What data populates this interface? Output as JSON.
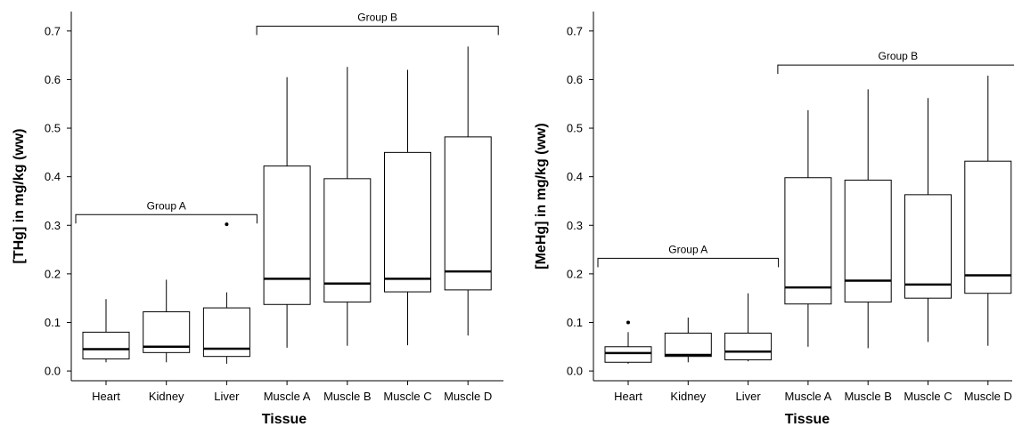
{
  "chart_data": [
    {
      "type": "boxplot",
      "xlabel": "Tissue",
      "ylabel": "[THg] in mg/kg (ww)",
      "ylim": [
        -0.02,
        0.74
      ],
      "yticks": [
        0.0,
        0.1,
        0.2,
        0.3,
        0.4,
        0.5,
        0.6,
        0.7
      ],
      "ytick_labels": [
        "0.0",
        "0.1",
        "0.2",
        "0.3",
        "0.4",
        "0.5",
        "0.6",
        "0.7"
      ],
      "categories": [
        "Heart",
        "Kidney",
        "Liver",
        "Muscle A",
        "Muscle B",
        "Muscle C",
        "Muscle D"
      ],
      "boxes": [
        {
          "whisker_low": 0.018,
          "q1": 0.025,
          "median": 0.045,
          "q3": 0.08,
          "whisker_high": 0.148,
          "outliers": []
        },
        {
          "whisker_low": 0.018,
          "q1": 0.038,
          "median": 0.05,
          "q3": 0.122,
          "whisker_high": 0.188,
          "outliers": []
        },
        {
          "whisker_low": 0.015,
          "q1": 0.03,
          "median": 0.046,
          "q3": 0.13,
          "whisker_high": 0.162,
          "outliers": [
            0.302
          ]
        },
        {
          "whisker_low": 0.048,
          "q1": 0.137,
          "median": 0.19,
          "q3": 0.422,
          "whisker_high": 0.605,
          "outliers": []
        },
        {
          "whisker_low": 0.052,
          "q1": 0.142,
          "median": 0.18,
          "q3": 0.396,
          "whisker_high": 0.626,
          "outliers": []
        },
        {
          "whisker_low": 0.053,
          "q1": 0.163,
          "median": 0.19,
          "q3": 0.45,
          "whisker_high": 0.62,
          "outliers": []
        },
        {
          "whisker_low": 0.073,
          "q1": 0.167,
          "median": 0.205,
          "q3": 0.482,
          "whisker_high": 0.668,
          "outliers": []
        }
      ],
      "annotations": [
        {
          "label": "Group A",
          "from": 0,
          "to": 2,
          "y": 0.322
        },
        {
          "label": "Group B",
          "from": 3,
          "to": 6,
          "y": 0.71
        }
      ]
    },
    {
      "type": "boxplot",
      "xlabel": "Tissue",
      "ylabel": "[MeHg] in mg/kg (ww)",
      "ylim": [
        -0.02,
        0.74
      ],
      "yticks": [
        0.0,
        0.1,
        0.2,
        0.3,
        0.4,
        0.5,
        0.6,
        0.7
      ],
      "ytick_labels": [
        "0.0",
        "0.1",
        "0.2",
        "0.3",
        "0.4",
        "0.5",
        "0.6",
        "0.7"
      ],
      "categories": [
        "Heart",
        "Kidney",
        "Liver",
        "Muscle A",
        "Muscle B",
        "Muscle C",
        "Muscle D"
      ],
      "boxes": [
        {
          "whisker_low": 0.015,
          "q1": 0.018,
          "median": 0.037,
          "q3": 0.05,
          "whisker_high": 0.08,
          "outliers": [
            0.1
          ]
        },
        {
          "whisker_low": 0.018,
          "q1": 0.03,
          "median": 0.033,
          "q3": 0.078,
          "whisker_high": 0.11,
          "outliers": []
        },
        {
          "whisker_low": 0.02,
          "q1": 0.023,
          "median": 0.04,
          "q3": 0.078,
          "whisker_high": 0.16,
          "outliers": []
        },
        {
          "whisker_low": 0.05,
          "q1": 0.138,
          "median": 0.172,
          "q3": 0.398,
          "whisker_high": 0.537,
          "outliers": []
        },
        {
          "whisker_low": 0.047,
          "q1": 0.142,
          "median": 0.186,
          "q3": 0.393,
          "whisker_high": 0.58,
          "outliers": []
        },
        {
          "whisker_low": 0.06,
          "q1": 0.15,
          "median": 0.178,
          "q3": 0.363,
          "whisker_high": 0.562,
          "outliers": []
        },
        {
          "whisker_low": 0.052,
          "q1": 0.16,
          "median": 0.197,
          "q3": 0.432,
          "whisker_high": 0.608,
          "outliers": []
        }
      ],
      "annotations": [
        {
          "label": "Group A",
          "from": 0,
          "to": 2,
          "y": 0.232
        },
        {
          "label": "Group B",
          "from": 3,
          "to": 6,
          "y": 0.63
        }
      ]
    }
  ]
}
